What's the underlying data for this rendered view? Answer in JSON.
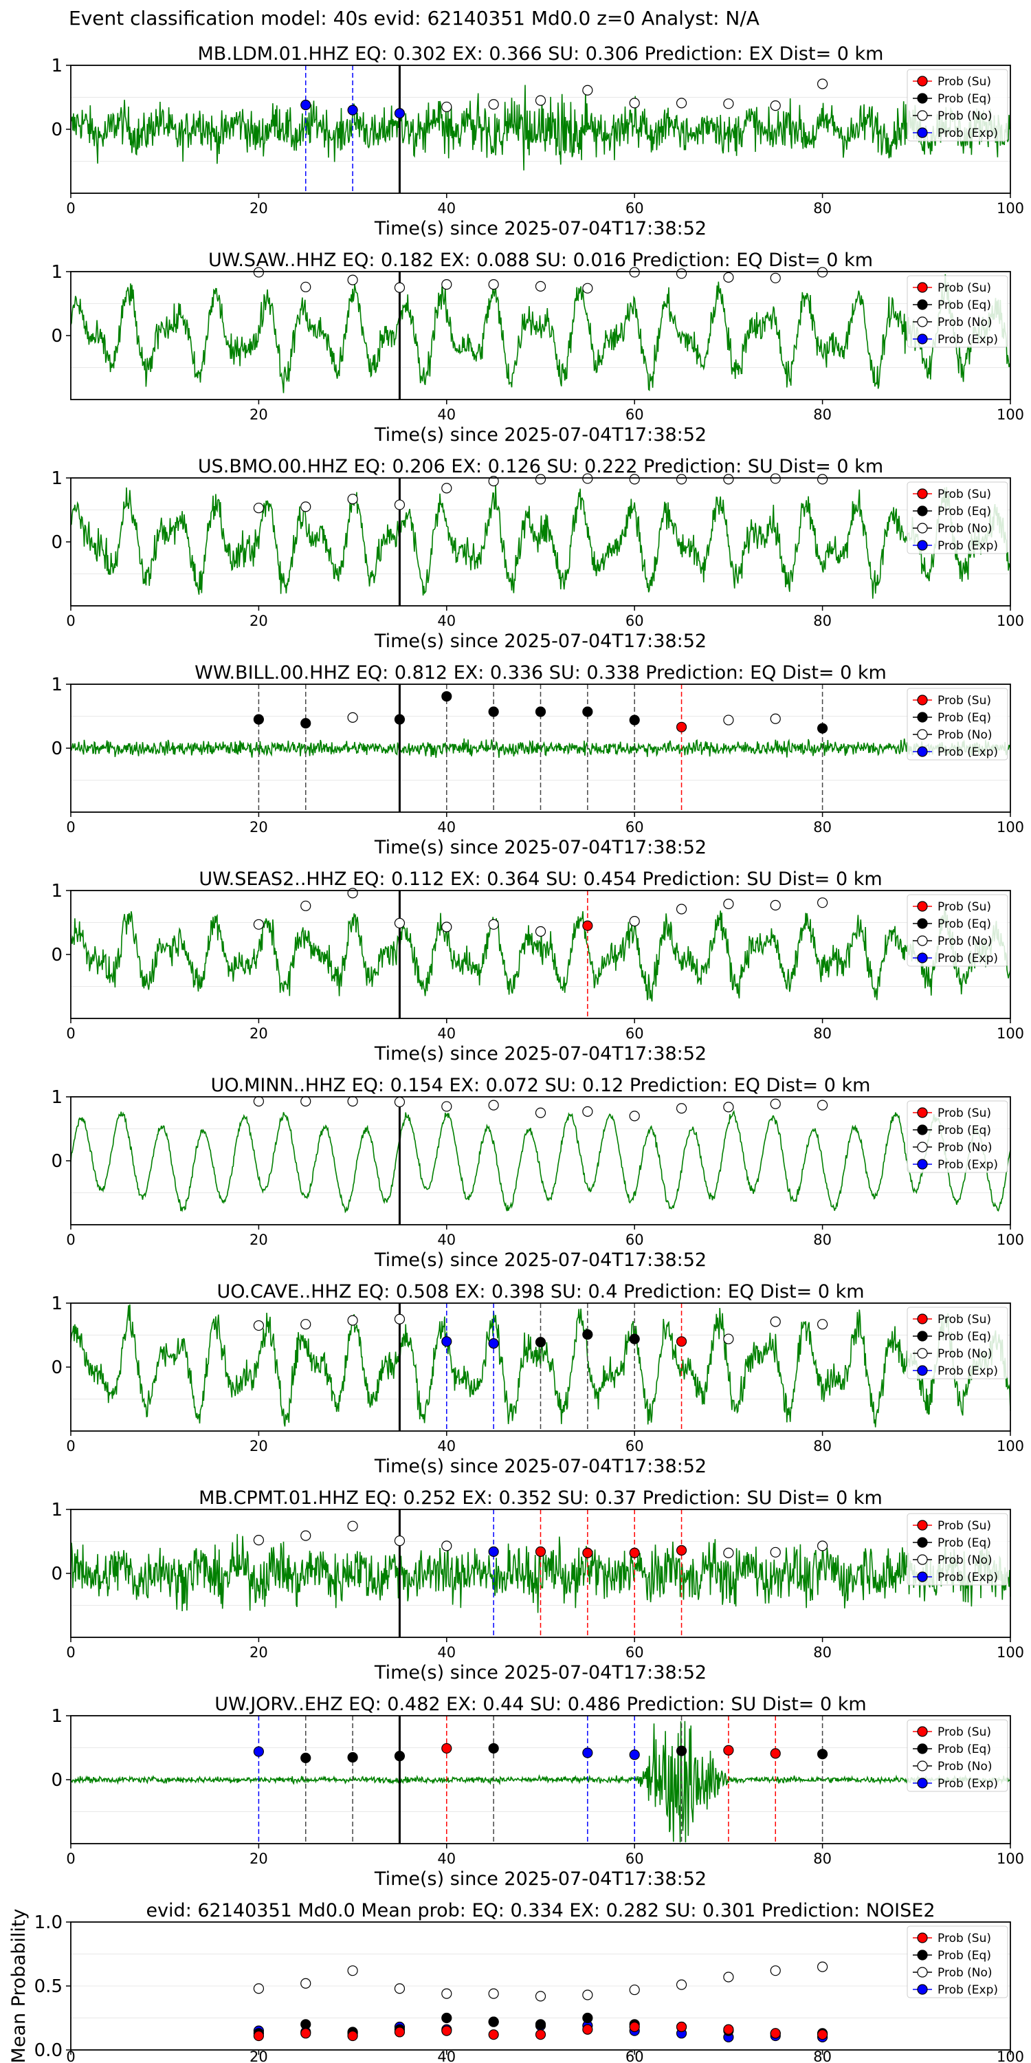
{
  "figure_title": "Event classification model: 40s evid: 62140351 Md0.0 z=0 Analyst: N/A",
  "legend_labels": [
    "Prob (Su)",
    "Prob (Eq)",
    "Prob (No)",
    "Prob (Exp)"
  ],
  "colors": {
    "waveform": "#008000",
    "su": "#ff0000",
    "eq": "#000000",
    "no": "#ffffff",
    "exp": "#0000ff",
    "arrival": "#000000"
  },
  "x_axis_label": "Time(s) since 2025-07-04T17:38:52",
  "arrival_time": 35,
  "chart_data": [
    {
      "type": "line",
      "title": "MB.LDM.01.HHZ   EQ: 0.302  EX: 0.366  SU: 0.306   Prediction: EX    Dist= 0 km",
      "station": "MB.LDM.01.HHZ",
      "xlim": [
        0,
        100
      ],
      "xticks": [
        0,
        20,
        40,
        60,
        80,
        100
      ],
      "yticks": [
        "1",
        "0"
      ],
      "xlabel": "Time(s) since 2025-07-04T17:38:52",
      "points": [
        {
          "t": 25,
          "p": 0.38,
          "c": "exp",
          "line": true
        },
        {
          "t": 30,
          "p": 0.3,
          "c": "exp",
          "line": true
        },
        {
          "t": 35,
          "p": 0.25,
          "c": "exp",
          "line": true
        },
        {
          "t": 40,
          "p": 0.35,
          "c": "no"
        },
        {
          "t": 45,
          "p": 0.39,
          "c": "no"
        },
        {
          "t": 50,
          "p": 0.45,
          "c": "no"
        },
        {
          "t": 55,
          "p": 0.61,
          "c": "no"
        },
        {
          "t": 60,
          "p": 0.41,
          "c": "no"
        },
        {
          "t": 65,
          "p": 0.41,
          "c": "no"
        },
        {
          "t": 70,
          "p": 0.4,
          "c": "no"
        },
        {
          "t": 75,
          "p": 0.37,
          "c": "no"
        },
        {
          "t": 80,
          "p": 0.71,
          "c": "no"
        }
      ]
    },
    {
      "type": "line",
      "title": "UW.SAW..HHZ   EQ: 0.182  EX: 0.088  SU: 0.016   Prediction: EQ    Dist= 0 km",
      "station": "UW.SAW..HHZ",
      "xlim": [
        0,
        100
      ],
      "xticks": [
        20,
        40,
        60,
        80,
        100
      ],
      "yticks": [
        "1",
        "0"
      ],
      "xlabel": "Time(s) since 2025-07-04T17:38:52",
      "points": [
        {
          "t": 20,
          "p": 0.99,
          "c": "no"
        },
        {
          "t": 25,
          "p": 0.76,
          "c": "no"
        },
        {
          "t": 30,
          "p": 0.87,
          "c": "no"
        },
        {
          "t": 35,
          "p": 0.75,
          "c": "no"
        },
        {
          "t": 40,
          "p": 0.8,
          "c": "no"
        },
        {
          "t": 45,
          "p": 0.8,
          "c": "no"
        },
        {
          "t": 50,
          "p": 0.77,
          "c": "no"
        },
        {
          "t": 55,
          "p": 0.74,
          "c": "no"
        },
        {
          "t": 60,
          "p": 0.99,
          "c": "no"
        },
        {
          "t": 65,
          "p": 0.97,
          "c": "no"
        },
        {
          "t": 70,
          "p": 0.91,
          "c": "no"
        },
        {
          "t": 75,
          "p": 0.9,
          "c": "no"
        },
        {
          "t": 80,
          "p": 0.99,
          "c": "no"
        }
      ]
    },
    {
      "type": "line",
      "title": "US.BMO.00.HHZ   EQ: 0.206  EX: 0.126  SU: 0.222   Prediction: SU    Dist= 0 km",
      "station": "US.BMO.00.HHZ",
      "xlim": [
        0,
        100
      ],
      "xticks": [
        0,
        20,
        40,
        60,
        80,
        100
      ],
      "yticks": [
        "1",
        "0"
      ],
      "xlabel": "Time(s) since 2025-07-04T17:38:52",
      "points": [
        {
          "t": 20,
          "p": 0.53,
          "c": "no"
        },
        {
          "t": 25,
          "p": 0.55,
          "c": "no"
        },
        {
          "t": 30,
          "p": 0.67,
          "c": "no"
        },
        {
          "t": 35,
          "p": 0.58,
          "c": "no"
        },
        {
          "t": 40,
          "p": 0.84,
          "c": "no"
        },
        {
          "t": 45,
          "p": 0.95,
          "c": "no"
        },
        {
          "t": 50,
          "p": 0.98,
          "c": "no"
        },
        {
          "t": 55,
          "p": 0.99,
          "c": "no"
        },
        {
          "t": 60,
          "p": 0.98,
          "c": "no"
        },
        {
          "t": 65,
          "p": 0.98,
          "c": "no"
        },
        {
          "t": 70,
          "p": 0.98,
          "c": "no"
        },
        {
          "t": 75,
          "p": 0.99,
          "c": "no"
        },
        {
          "t": 80,
          "p": 0.98,
          "c": "no"
        }
      ]
    },
    {
      "type": "line",
      "title": "WW.BILL.00.HHZ   EQ: 0.812  EX: 0.336  SU: 0.338   Prediction: EQ    Dist= 0 km",
      "station": "WW.BILL.00.HHZ",
      "xlim": [
        0,
        100
      ],
      "xticks": [
        0,
        20,
        40,
        60,
        80,
        100
      ],
      "yticks": [
        "1",
        "0"
      ],
      "xlabel": "Time(s) since 2025-07-04T17:38:52",
      "points": [
        {
          "t": 20,
          "p": 0.45,
          "c": "eq",
          "line": true
        },
        {
          "t": 25,
          "p": 0.39,
          "c": "eq",
          "line": true
        },
        {
          "t": 30,
          "p": 0.48,
          "c": "no"
        },
        {
          "t": 35,
          "p": 0.45,
          "c": "eq"
        },
        {
          "t": 40,
          "p": 0.81,
          "c": "eq",
          "line": true
        },
        {
          "t": 45,
          "p": 0.57,
          "c": "eq",
          "line": true
        },
        {
          "t": 50,
          "p": 0.57,
          "c": "eq",
          "line": true
        },
        {
          "t": 55,
          "p": 0.57,
          "c": "eq",
          "line": true
        },
        {
          "t": 60,
          "p": 0.44,
          "c": "eq",
          "line": true
        },
        {
          "t": 65,
          "p": 0.33,
          "c": "su",
          "line": true
        },
        {
          "t": 70,
          "p": 0.44,
          "c": "no"
        },
        {
          "t": 75,
          "p": 0.46,
          "c": "no"
        },
        {
          "t": 80,
          "p": 0.31,
          "c": "eq",
          "line": true
        }
      ]
    },
    {
      "type": "line",
      "title": "UW.SEAS2..HHZ   EQ: 0.112  EX: 0.364  SU: 0.454   Prediction: SU    Dist= 0 km",
      "station": "UW.SEAS2..HHZ",
      "xlim": [
        0,
        100
      ],
      "xticks": [
        0,
        20,
        40,
        60,
        80,
        100
      ],
      "yticks": [
        "1",
        "0"
      ],
      "xlabel": "Time(s) since 2025-07-04T17:38:52",
      "points": [
        {
          "t": 20,
          "p": 0.47,
          "c": "no"
        },
        {
          "t": 25,
          "p": 0.76,
          "c": "no"
        },
        {
          "t": 30,
          "p": 0.96,
          "c": "no"
        },
        {
          "t": 35,
          "p": 0.49,
          "c": "no"
        },
        {
          "t": 40,
          "p": 0.43,
          "c": "no"
        },
        {
          "t": 45,
          "p": 0.47,
          "c": "no"
        },
        {
          "t": 50,
          "p": 0.36,
          "c": "no"
        },
        {
          "t": 55,
          "p": 0.45,
          "c": "su",
          "line": true
        },
        {
          "t": 60,
          "p": 0.52,
          "c": "no"
        },
        {
          "t": 65,
          "p": 0.71,
          "c": "no"
        },
        {
          "t": 70,
          "p": 0.79,
          "c": "no"
        },
        {
          "t": 75,
          "p": 0.77,
          "c": "no"
        },
        {
          "t": 80,
          "p": 0.81,
          "c": "no"
        }
      ]
    },
    {
      "type": "line",
      "title": "UO.MINN..HHZ   EQ: 0.154  EX: 0.072  SU: 0.12   Prediction: EQ    Dist= 0 km",
      "station": "UO.MINN..HHZ",
      "xlim": [
        0,
        100
      ],
      "xticks": [
        0,
        20,
        40,
        60,
        80,
        100
      ],
      "yticks": [
        "1",
        "0"
      ],
      "xlabel": "Time(s) since 2025-07-04T17:38:52",
      "points": [
        {
          "t": 20,
          "p": 0.93,
          "c": "no"
        },
        {
          "t": 25,
          "p": 0.93,
          "c": "no"
        },
        {
          "t": 30,
          "p": 0.93,
          "c": "no"
        },
        {
          "t": 35,
          "p": 0.92,
          "c": "no"
        },
        {
          "t": 40,
          "p": 0.85,
          "c": "no"
        },
        {
          "t": 45,
          "p": 0.87,
          "c": "no"
        },
        {
          "t": 50,
          "p": 0.75,
          "c": "no"
        },
        {
          "t": 55,
          "p": 0.77,
          "c": "no"
        },
        {
          "t": 60,
          "p": 0.7,
          "c": "no"
        },
        {
          "t": 65,
          "p": 0.82,
          "c": "no"
        },
        {
          "t": 70,
          "p": 0.84,
          "c": "no"
        },
        {
          "t": 75,
          "p": 0.89,
          "c": "no"
        },
        {
          "t": 80,
          "p": 0.87,
          "c": "no"
        }
      ]
    },
    {
      "type": "line",
      "title": "UO.CAVE..HHZ   EQ: 0.508  EX: 0.398  SU: 0.4   Prediction: EQ    Dist= 0 km",
      "station": "UO.CAVE..HHZ",
      "xlim": [
        0,
        100
      ],
      "xticks": [
        0,
        20,
        40,
        60,
        80,
        100
      ],
      "yticks": [
        "1",
        "0"
      ],
      "xlabel": "Time(s) since 2025-07-04T17:38:52",
      "points": [
        {
          "t": 20,
          "p": 0.65,
          "c": "no"
        },
        {
          "t": 25,
          "p": 0.67,
          "c": "no"
        },
        {
          "t": 30,
          "p": 0.73,
          "c": "no"
        },
        {
          "t": 35,
          "p": 0.75,
          "c": "no"
        },
        {
          "t": 40,
          "p": 0.4,
          "c": "exp",
          "line": true
        },
        {
          "t": 45,
          "p": 0.37,
          "c": "exp",
          "line": true
        },
        {
          "t": 50,
          "p": 0.39,
          "c": "eq",
          "line": true
        },
        {
          "t": 55,
          "p": 0.51,
          "c": "eq",
          "line": true
        },
        {
          "t": 60,
          "p": 0.44,
          "c": "eq",
          "line": true
        },
        {
          "t": 65,
          "p": 0.4,
          "c": "su",
          "line": true
        },
        {
          "t": 70,
          "p": 0.44,
          "c": "no"
        },
        {
          "t": 75,
          "p": 0.71,
          "c": "no"
        },
        {
          "t": 80,
          "p": 0.67,
          "c": "no"
        }
      ]
    },
    {
      "type": "line",
      "title": "MB.CPMT.01.HHZ   EQ: 0.252  EX: 0.352  SU: 0.37   Prediction: SU    Dist= 0 km",
      "station": "MB.CPMT.01.HHZ",
      "xlim": [
        0,
        100
      ],
      "xticks": [
        0,
        20,
        40,
        60,
        80,
        100
      ],
      "yticks": [
        "1",
        "0"
      ],
      "xlabel": "Time(s) since 2025-07-04T17:38:52",
      "points": [
        {
          "t": 20,
          "p": 0.52,
          "c": "no"
        },
        {
          "t": 25,
          "p": 0.59,
          "c": "no"
        },
        {
          "t": 30,
          "p": 0.74,
          "c": "no"
        },
        {
          "t": 35,
          "p": 0.51,
          "c": "no"
        },
        {
          "t": 40,
          "p": 0.43,
          "c": "no"
        },
        {
          "t": 45,
          "p": 0.34,
          "c": "exp",
          "line": true
        },
        {
          "t": 50,
          "p": 0.34,
          "c": "su",
          "line": true
        },
        {
          "t": 55,
          "p": 0.32,
          "c": "su",
          "line": true
        },
        {
          "t": 60,
          "p": 0.32,
          "c": "su",
          "line": true
        },
        {
          "t": 65,
          "p": 0.36,
          "c": "su",
          "line": true
        },
        {
          "t": 70,
          "p": 0.32,
          "c": "no"
        },
        {
          "t": 75,
          "p": 0.33,
          "c": "no"
        },
        {
          "t": 80,
          "p": 0.43,
          "c": "no"
        }
      ]
    },
    {
      "type": "line",
      "title": "UW.JORV..EHZ   EQ: 0.482  EX: 0.44  SU: 0.486   Prediction: SU    Dist= 0 km",
      "station": "UW.JORV..EHZ",
      "xlim": [
        0,
        100
      ],
      "xticks": [
        0,
        20,
        40,
        60,
        80,
        100
      ],
      "yticks": [
        "1",
        "0"
      ],
      "xlabel": "Time(s) since 2025-07-04T17:38:52",
      "points": [
        {
          "t": 20,
          "p": 0.44,
          "c": "exp",
          "line": true
        },
        {
          "t": 25,
          "p": 0.34,
          "c": "eq",
          "line": true
        },
        {
          "t": 30,
          "p": 0.35,
          "c": "eq",
          "line": true
        },
        {
          "t": 35,
          "p": 0.37,
          "c": "eq"
        },
        {
          "t": 40,
          "p": 0.49,
          "c": "su",
          "line": true
        },
        {
          "t": 45,
          "p": 0.49,
          "c": "eq",
          "line": true
        },
        {
          "t": 55,
          "p": 0.42,
          "c": "exp",
          "line": true
        },
        {
          "t": 60,
          "p": 0.39,
          "c": "exp",
          "line": true
        },
        {
          "t": 65,
          "p": 0.45,
          "c": "eq",
          "line": true
        },
        {
          "t": 70,
          "p": 0.46,
          "c": "su",
          "line": true
        },
        {
          "t": 75,
          "p": 0.41,
          "c": "su",
          "line": true
        },
        {
          "t": 80,
          "p": 0.4,
          "c": "eq",
          "line": true
        }
      ]
    },
    {
      "type": "scatter",
      "title": "evid: 62140351  Md0.0   Mean prob:    EQ: 0.334  EX: 0.282  SU: 0.301   Prediction: NOISE2",
      "ylabel": "Mean Probability",
      "xlim": [
        0,
        100
      ],
      "ylim": [
        0,
        1
      ],
      "xticks": [
        0,
        20,
        40,
        60,
        80,
        100
      ],
      "yticks": [
        "1.0",
        "0.5",
        "0.0"
      ],
      "x": [
        20,
        25,
        30,
        35,
        40,
        45,
        50,
        55,
        60,
        65,
        70,
        75,
        80
      ],
      "series": [
        {
          "name": "Prob (No)",
          "key": "no",
          "values": [
            0.48,
            0.52,
            0.62,
            0.48,
            0.44,
            0.44,
            0.42,
            0.43,
            0.47,
            0.51,
            0.57,
            0.62,
            0.65
          ]
        },
        {
          "name": "Prob (Exp)",
          "key": "exp",
          "values": [
            0.15,
            0.14,
            0.13,
            0.18,
            0.16,
            0.22,
            0.19,
            0.19,
            0.15,
            0.13,
            0.1,
            0.11,
            0.1
          ]
        },
        {
          "name": "Prob (Eq)",
          "key": "eq",
          "values": [
            0.13,
            0.2,
            0.14,
            0.16,
            0.25,
            0.22,
            0.2,
            0.25,
            0.2,
            0.18,
            0.15,
            0.13,
            0.13
          ]
        },
        {
          "name": "Prob (Su)",
          "key": "su",
          "values": [
            0.11,
            0.13,
            0.11,
            0.14,
            0.15,
            0.12,
            0.12,
            0.16,
            0.18,
            0.18,
            0.16,
            0.13,
            0.12
          ]
        }
      ]
    }
  ]
}
